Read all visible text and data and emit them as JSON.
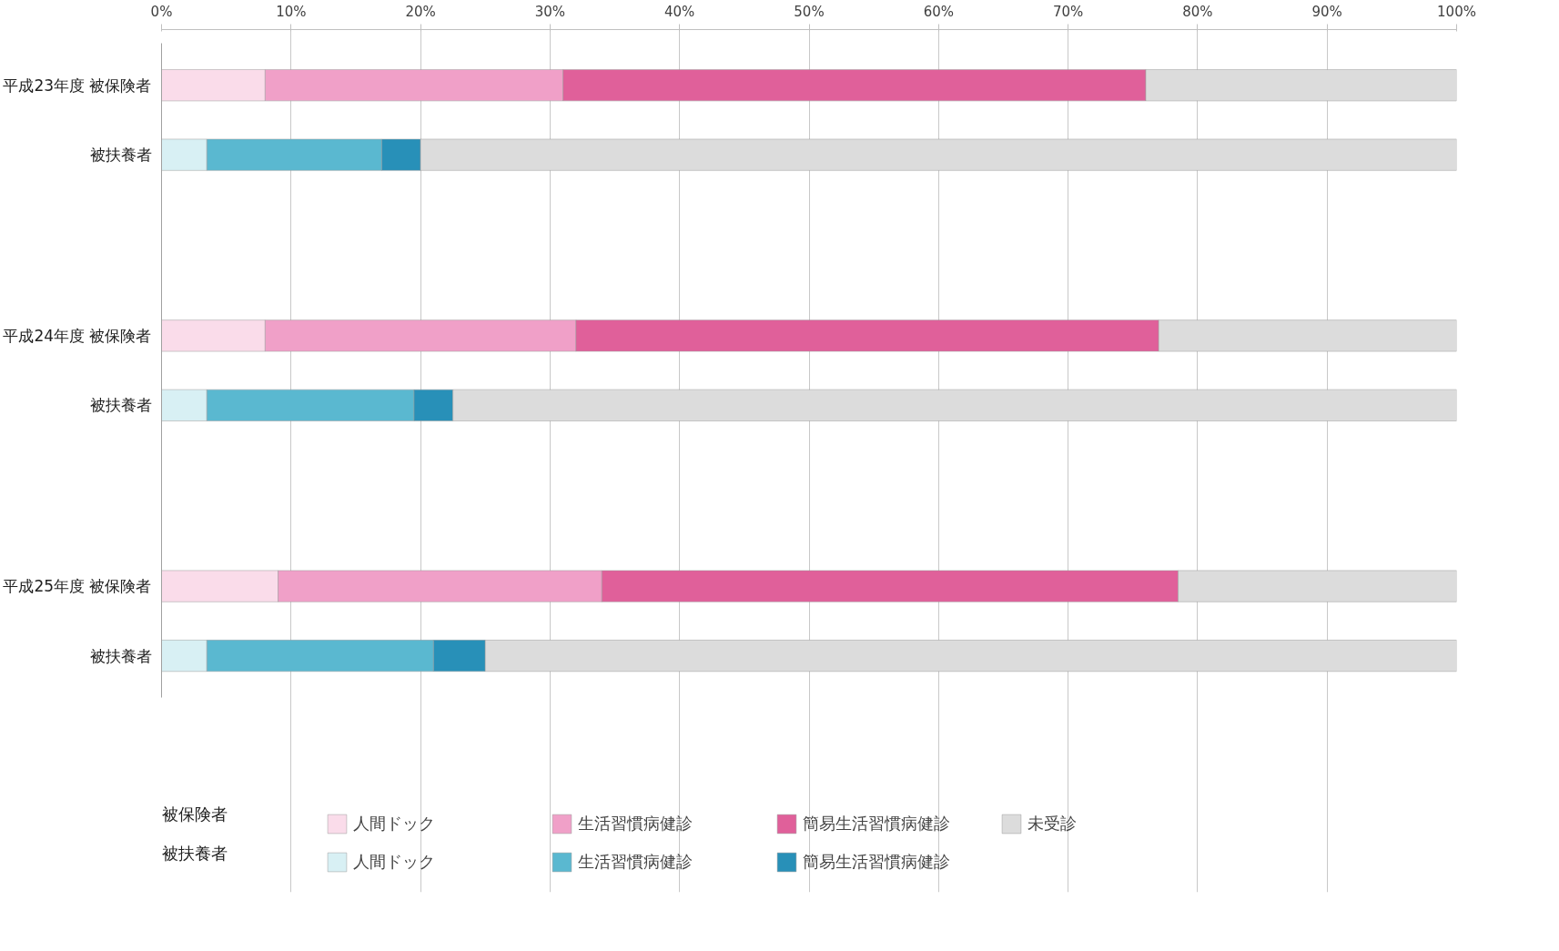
{
  "chart_data": {
    "type": "bar",
    "orientation": "horizontal",
    "stacked": true,
    "categories": [
      "平成23年度 被保険者",
      "被扶養者",
      "平成24年度 被保険者",
      "被扶養者",
      "平成25年度 被保険者",
      "被扶養者"
    ],
    "xlim": [
      0,
      100
    ],
    "xticks": [
      {
        "value": 0,
        "label": "0%"
      },
      {
        "value": 10,
        "label": "10%"
      },
      {
        "value": 20,
        "label": "20%"
      },
      {
        "value": 30,
        "label": "30%"
      },
      {
        "value": 40,
        "label": "40%"
      },
      {
        "value": 50,
        "label": "50%"
      },
      {
        "value": 60,
        "label": "60%"
      },
      {
        "value": 70,
        "label": "70%"
      },
      {
        "value": 80,
        "label": "80%"
      },
      {
        "value": 90,
        "label": "90%"
      },
      {
        "value": 100,
        "label": "100%"
      }
    ],
    "grid": "x",
    "legend": "bottom",
    "annotations": [
      "被保険者",
      "被扶養者"
    ],
    "series": [
      {
        "name": "人間ドック",
        "colors": [
          "#fadcea",
          "#d8f0f4",
          "#fadcea",
          "#d8f0f4",
          "#fadcea",
          "#d8f0f4"
        ],
        "values": [
          8,
          3.5,
          8,
          3.5,
          9,
          3.5
        ]
      },
      {
        "name": "生活習慣病健診",
        "colors": [
          "#f0a0c8",
          "#5ab8d0",
          "#f0a0c8",
          "#5ab8d0",
          "#f0a0c8",
          "#5ab8d0"
        ],
        "values": [
          23,
          13.5,
          24,
          16,
          25,
          17.5
        ]
      },
      {
        "name": "簡易生活習慣病健診",
        "colors": [
          "#e0609a",
          "#2890b8",
          "#e0609a",
          "#2890b8",
          "#e0609a",
          "#2890b8"
        ],
        "values": [
          45,
          3,
          45,
          3,
          44.5,
          4
        ]
      },
      {
        "name": "未受診",
        "color": "#dcdcdc",
        "values": [
          24,
          80,
          23,
          77.5,
          21.5,
          75
        ]
      }
    ]
  }
}
